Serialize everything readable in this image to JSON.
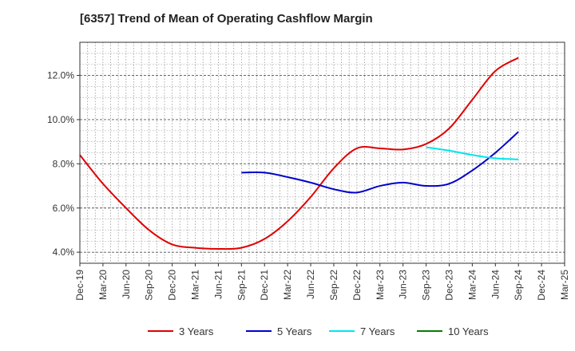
{
  "chart_data": {
    "type": "line",
    "title": "[6357]  Trend of Mean of Operating Cashflow Margin",
    "xlabel": "",
    "ylabel": "",
    "x_ticks": [
      "Dec-19",
      "Mar-20",
      "Jun-20",
      "Sep-20",
      "Dec-20",
      "Mar-21",
      "Jun-21",
      "Sep-21",
      "Dec-21",
      "Mar-22",
      "Jun-22",
      "Sep-22",
      "Dec-22",
      "Mar-23",
      "Jun-23",
      "Sep-23",
      "Dec-23",
      "Mar-24",
      "Jun-24",
      "Sep-24",
      "Dec-24",
      "Mar-25"
    ],
    "y_ticks": [
      "4.0%",
      "6.0%",
      "8.0%",
      "10.0%",
      "12.0%"
    ],
    "y_tick_values": [
      4,
      6,
      8,
      10,
      12
    ],
    "ylim": [
      3.5,
      13.5
    ],
    "grid": true,
    "legend_position": "bottom",
    "series": [
      {
        "name": "3 Years",
        "color": "#e00000",
        "x": [
          "Dec-19",
          "Mar-20",
          "Jun-20",
          "Sep-20",
          "Dec-20",
          "Mar-21",
          "Jun-21",
          "Sep-21",
          "Dec-21",
          "Mar-22",
          "Jun-22",
          "Sep-22",
          "Dec-22",
          "Mar-23",
          "Jun-23",
          "Sep-23",
          "Dec-23",
          "Mar-24",
          "Jun-24",
          "Sep-24"
        ],
        "values": [
          8.4,
          7.1,
          6.0,
          5.0,
          4.35,
          4.2,
          4.15,
          4.2,
          4.6,
          5.4,
          6.5,
          7.8,
          8.7,
          8.7,
          8.65,
          8.9,
          9.6,
          10.9,
          12.2,
          12.8
        ]
      },
      {
        "name": "5 Years",
        "color": "#0000cc",
        "x": [
          "Sep-21",
          "Dec-21",
          "Mar-22",
          "Jun-22",
          "Sep-22",
          "Dec-22",
          "Mar-23",
          "Jun-23",
          "Sep-23",
          "Dec-23",
          "Mar-24",
          "Jun-24",
          "Sep-24"
        ],
        "values": [
          7.6,
          7.6,
          7.4,
          7.15,
          6.85,
          6.7,
          7.0,
          7.15,
          7.0,
          7.1,
          7.7,
          8.5,
          9.45
        ]
      },
      {
        "name": "7 Years",
        "color": "#00e5ee",
        "x": [
          "Sep-23",
          "Dec-23",
          "Mar-24",
          "Jun-24",
          "Sep-24"
        ],
        "values": [
          8.75,
          8.6,
          8.4,
          8.25,
          8.2
        ]
      },
      {
        "name": "10 Years",
        "color": "#008000",
        "x": [],
        "values": []
      }
    ]
  }
}
